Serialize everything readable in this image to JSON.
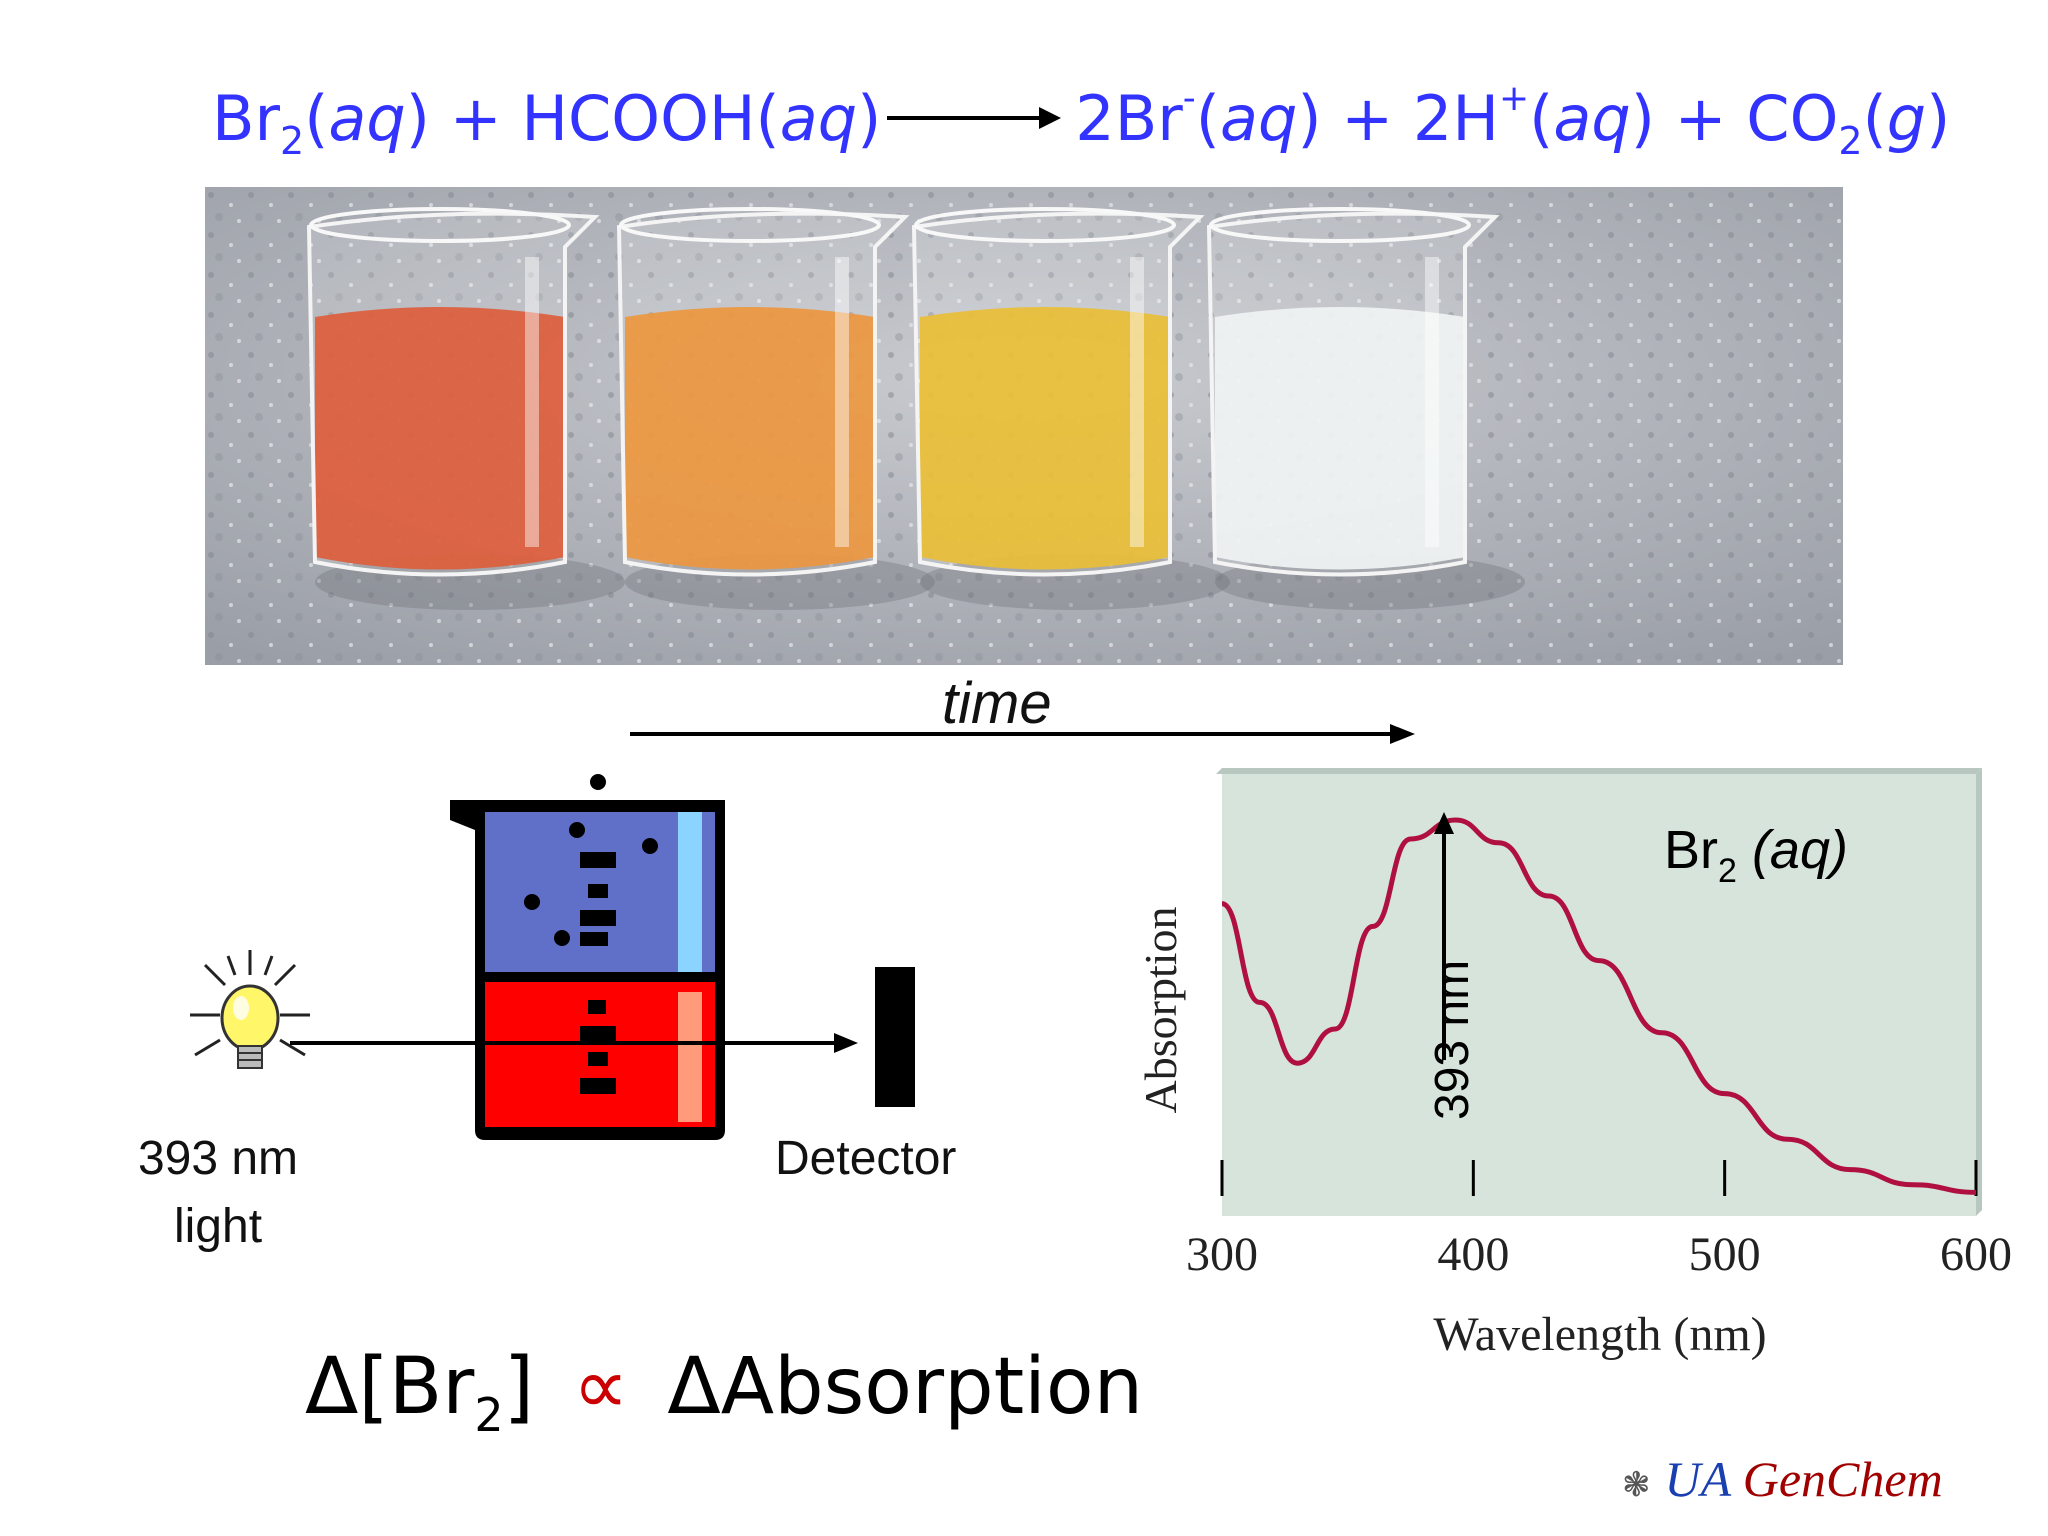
{
  "equation": {
    "reactant1": "Br",
    "reactant1_sub": "2",
    "reactant1_state": "aq",
    "plus1": " + ",
    "reactant2": "HCOOH",
    "reactant2_state": "aq",
    "product1": "2Br",
    "product1_sup": "-",
    "product1_state": "aq",
    "plus2": " + ",
    "product2": "2H",
    "product2_sup": "+",
    "product2_state": "aq",
    "plus3": " + ",
    "product3": "CO",
    "product3_sub": "2",
    "product3_state": "g",
    "color": "#3333ff"
  },
  "photo": {
    "beakers": [
      {
        "liquid_color": "#d8421a"
      },
      {
        "liquid_color": "#e8861e"
      },
      {
        "liquid_color": "#e6b312"
      },
      {
        "liquid_color": "#eef2f2"
      }
    ]
  },
  "time_label": "time",
  "diagram": {
    "light_label_line1": "393 nm",
    "light_label_line2": "light",
    "detector_label": "Detector",
    "beaker_top_color": "#6070c8",
    "beaker_bottom_color": "#ff0000"
  },
  "formula": {
    "delta1": "Δ[Br",
    "sub": "2",
    "close": "]",
    "prop": "∝",
    "rhs": "ΔAbsorption"
  },
  "chart_data": {
    "type": "line",
    "title": "",
    "annotation_species": "Br",
    "annotation_species_sub": "2",
    "annotation_state": "(aq)",
    "peak_label": "393 nm",
    "xlabel": "Wavelength (nm)",
    "ylabel": "Absorption",
    "xlim": [
      300,
      600
    ],
    "x_ticks": [
      300,
      400,
      500,
      600
    ],
    "series": [
      {
        "color": "#b01040",
        "x": [
          300,
          315,
          330,
          345,
          360,
          375,
          393,
          410,
          430,
          450,
          475,
          500,
          525,
          550,
          575,
          600
        ],
        "y": [
          0.78,
          0.52,
          0.36,
          0.45,
          0.72,
          0.95,
          1.0,
          0.94,
          0.8,
          0.63,
          0.44,
          0.28,
          0.16,
          0.08,
          0.04,
          0.02
        ]
      }
    ],
    "background": "#d6e4dc"
  },
  "credit": {
    "ua": "UA",
    "genchem": "GenChem",
    "star": "❃"
  }
}
